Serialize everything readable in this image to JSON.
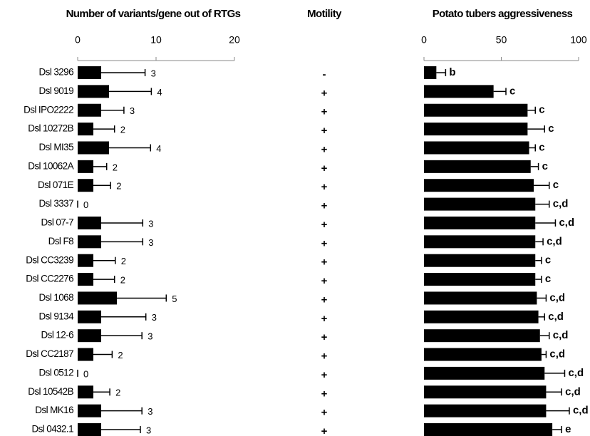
{
  "chart_data": [
    {
      "type": "bar",
      "title": "Number of variants/gene out of RTGs",
      "categories": [
        "Dsl 3296",
        "Dsl 9019",
        "Dsl IPO2222",
        "Dsl 10272B",
        "Dsl MI35",
        "Dsl 10062A",
        "Dsl 071E",
        "Dsl 3337",
        "Dsl 07-7",
        "Dsl F8",
        "Dsl CC3239",
        "Dsl CC2276",
        "Dsl 1068",
        "Dsl 9134",
        "Dsl 12-6",
        "Dsl CC2187",
        "Dsl 0512",
        "Dsl 10542B",
        "Dsl MK16",
        "Dsl 0432.1"
      ],
      "values": [
        3,
        4,
        3,
        2,
        4,
        2,
        2,
        0,
        3,
        3,
        2,
        2,
        5,
        3,
        3,
        2,
        0,
        2,
        3,
        3
      ],
      "errors": [
        5.6,
        5.4,
        2.9,
        2.7,
        5.3,
        1.7,
        2.2,
        0,
        5.3,
        5.3,
        2.8,
        2.7,
        6.3,
        5.7,
        5.2,
        2.4,
        0,
        2.1,
        5.2,
        5.0
      ],
      "color": "#000000",
      "xlim": [
        0,
        20
      ],
      "xticks": [
        0,
        10,
        20
      ]
    },
    {
      "type": "bar",
      "title": "Potato tubers aggressiveness",
      "values": [
        8,
        45,
        67,
        67,
        68,
        69,
        71,
        72,
        72,
        72,
        72,
        72,
        73,
        74,
        75,
        76,
        78,
        79,
        79,
        83
      ],
      "errors": [
        6,
        8,
        5,
        11,
        4,
        5,
        10,
        9,
        13,
        5,
        4,
        4,
        6,
        4,
        6,
        3,
        13,
        10,
        15,
        6
      ],
      "letters": [
        "b",
        "c",
        "c",
        "c",
        "c",
        "c",
        "c",
        "c,d",
        "c,d",
        "c,d",
        "c",
        "c",
        "c,d",
        "c,d",
        "c,d",
        "c,d",
        "c,d",
        "c,d",
        "c,d",
        "e"
      ],
      "color": "#000000",
      "xlim": [
        0,
        100
      ],
      "xticks": [
        0,
        50,
        100
      ]
    }
  ],
  "motility": {
    "title": "Motility",
    "values": [
      "-",
      "+",
      "+",
      "+",
      "+",
      "+",
      "+",
      "+",
      "+",
      "+",
      "+",
      "+",
      "+",
      "+",
      "+",
      "+",
      "+",
      "+",
      "+",
      "+"
    ]
  }
}
